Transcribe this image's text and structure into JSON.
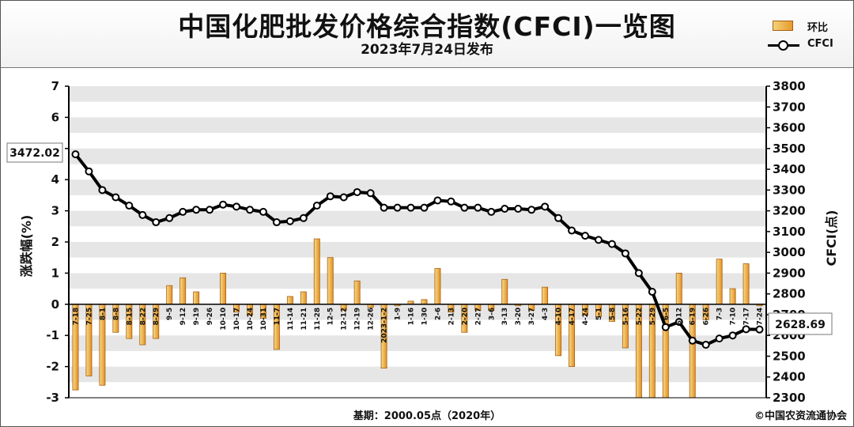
{
  "header": {
    "title": "中国化肥批发价格综合指数(CFCI)一览图",
    "subtitle": "2023年7月24日发布"
  },
  "legend": {
    "bar_label": "环比",
    "line_label": "CFCI"
  },
  "footer": {
    "base_note": "基期：2000.05点（2020年）",
    "credit": "©中国农资流通协会"
  },
  "colors": {
    "bar_light": "#f4d27a",
    "bar_dark": "#e79a2a",
    "bar_edge": "#a86012",
    "line": "#000000",
    "band": "#e6e6e6"
  },
  "chart_data": {
    "type": "bar+line",
    "x": [
      "7-18",
      "7-25",
      "8-1",
      "8-8",
      "8-15",
      "8-22",
      "8-29",
      "9-5",
      "9-12",
      "9-19",
      "9-26",
      "10-10",
      "10-17",
      "10-24",
      "10-31",
      "11-7",
      "11-14",
      "11-21",
      "11-28",
      "12-5",
      "12-12",
      "12-19",
      "12-26",
      "2023-1-2",
      "1-9",
      "1-16",
      "1-30",
      "2-6",
      "2-13",
      "2-20",
      "2-27",
      "3-6",
      "3-13",
      "3-20",
      "3-27",
      "4-3",
      "4-10",
      "4-17",
      "4-24",
      "5-1",
      "5-8",
      "5-16",
      "5-22",
      "5-29",
      "6-5",
      "6-12",
      "6-19",
      "6-26",
      "7-3",
      "7-10",
      "7-17",
      "7-24"
    ],
    "series": [
      {
        "name": "环比",
        "axis": "left",
        "values": [
          -2.75,
          -2.3,
          -2.6,
          -0.9,
          -1.1,
          -1.3,
          -1.1,
          0.6,
          0.85,
          0.4,
          0.0,
          1.0,
          -0.25,
          -0.35,
          -0.45,
          -1.45,
          0.25,
          0.4,
          2.1,
          1.5,
          -0.2,
          0.75,
          -0.1,
          -2.05,
          -0.05,
          0.1,
          0.15,
          1.15,
          -0.25,
          -0.9,
          -0.2,
          -0.2,
          0.8,
          -0.05,
          -0.2,
          0.55,
          -1.65,
          -2.0,
          -0.35,
          -0.4,
          -0.55,
          -1.4,
          -3.0,
          -3.0,
          -3.0,
          1.0,
          -3.0,
          -0.5,
          1.45,
          0.5,
          1.3,
          -0.05
        ]
      },
      {
        "name": "CFCI",
        "axis": "right",
        "values": [
          3472.02,
          3390,
          3300,
          3265,
          3225,
          3180,
          3145,
          3165,
          3195,
          3205,
          3205,
          3230,
          3220,
          3205,
          3195,
          3145,
          3150,
          3165,
          3225,
          3270,
          3265,
          3290,
          3285,
          3215,
          3215,
          3215,
          3215,
          3250,
          3245,
          3215,
          3215,
          3195,
          3210,
          3210,
          3205,
          3220,
          3165,
          3105,
          3080,
          3060,
          3040,
          2995,
          2900,
          2810,
          2640,
          2665,
          2575,
          2555,
          2585,
          2600,
          2630,
          2628.69
        ]
      }
    ],
    "ylabel_left": "涨跌幅(%)",
    "ylabel_right": "CFCI(点)",
    "ylim_left": [
      -3,
      7
    ],
    "ylim_right": [
      2300,
      3800
    ],
    "yticks_left": [
      "7",
      "6",
      "5",
      "4",
      "3",
      "2",
      "1",
      "0",
      "-1",
      "-2",
      "-3"
    ],
    "yticks_right": [
      "3800",
      "3700",
      "3600",
      "3500",
      "3400",
      "3300",
      "3200",
      "3100",
      "3000",
      "2900",
      "2800",
      "2700",
      "2600",
      "2500",
      "2400",
      "2300"
    ],
    "annotations": {
      "first_value": "3472.02",
      "last_value": "2628.69"
    },
    "grid": "horizontal bands",
    "legend_position": "top-right"
  }
}
